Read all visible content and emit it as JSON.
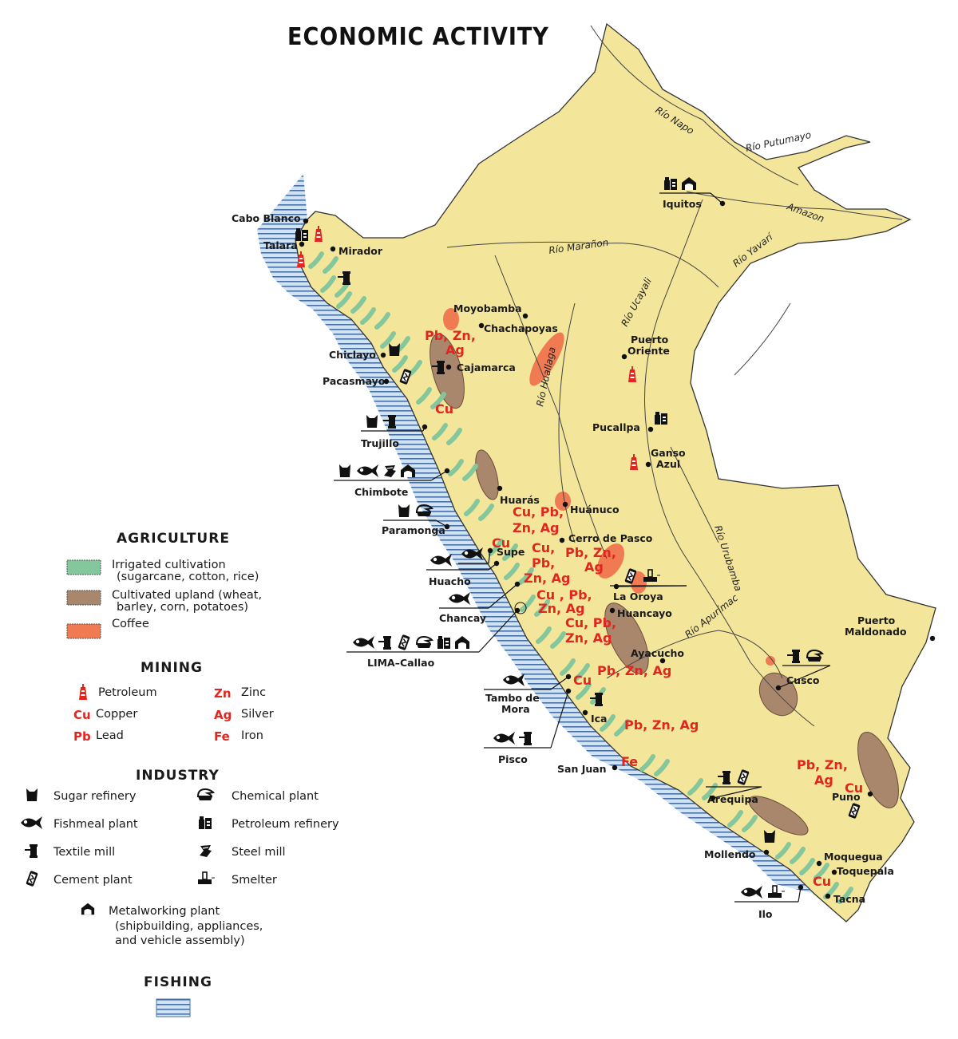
{
  "title": "ECONOMIC ACTIVITY",
  "colors": {
    "land": "#f3e69a",
    "border": "#333333",
    "irrigated": "#84c79c",
    "upland": "#a9876c",
    "coffee": "#f07a52",
    "mineral_label": "#e2261f",
    "fishing_stripe": "#4a6fa5",
    "fishing_fill": "#cfe3f3"
  },
  "rivers": [
    "Río Napo",
    "Río Putumayo",
    "Amazon",
    "Río Yavarí",
    "Río Marañon",
    "Río Ucayali",
    "Río Huallaga",
    "Río Urubamba",
    "Río Apurímac"
  ],
  "cities": [
    "Cabo Blanco",
    "Talara",
    "Mirador",
    "Moyobamba",
    "Chachapoyas",
    "Chiclayo",
    "Cajamarca",
    "Pacasmayo",
    "Trujillo",
    "Chimbote",
    "Huarás",
    "Huánuco",
    "Paramonga",
    "Cerro de Pasco",
    "Supe",
    "Huacho",
    "La Oroya",
    "Chancay",
    "Huancayo",
    "LIMA–Callao",
    "Ayacucho",
    "Tambo de",
    "Mora",
    "Ica",
    "Pisco",
    "San Juan",
    "Iquitos",
    "Puerto",
    "Oriente",
    "Pucallpa",
    "Ganso",
    "Azul",
    "Puerto",
    "Maldonado",
    "Cusco",
    "Arequipa",
    "Puno",
    "Mollendo",
    "Moquegua",
    "Toquepala",
    "Tacna",
    "Ilo"
  ],
  "mineral_labels": [
    "Pb, Zn,",
    "Ag",
    "Cu",
    "Cu, Pb,",
    "Zn, Ag",
    "Cu",
    "Cu,",
    "Pb,",
    "Zn, Ag",
    "Pb, Zn,",
    "Ag",
    "Cu , Pb,",
    "Zn, Ag",
    "Cu, Pb,",
    "Zn, Ag",
    "Pb, Zn, Ag",
    "Cu",
    "Pb, Zn, Ag",
    "Fe",
    "Pb, Zn,",
    "Ag",
    "Cu",
    "Cu"
  ],
  "industry_clusters": [
    {
      "place": "Iquitos",
      "icons": [
        "petroleum-refinery",
        "metalworking-plant"
      ]
    },
    {
      "place": "Talara",
      "icons": [
        "petroleum-refinery"
      ]
    },
    {
      "place": "Mirador",
      "icons": [
        "textile-mill"
      ]
    },
    {
      "place": "Chiclayo",
      "icons": [
        "sugar-refinery"
      ]
    },
    {
      "place": "Cajamarca",
      "icons": [
        "textile-mill"
      ]
    },
    {
      "place": "Pacasmayo",
      "icons": [
        "cement-plant"
      ]
    },
    {
      "place": "Trujillo",
      "icons": [
        "sugar-refinery",
        "textile-mill"
      ]
    },
    {
      "place": "Chimbote",
      "icons": [
        "sugar-refinery",
        "fishmeal-plant",
        "steel-mill",
        "metalworking-plant"
      ]
    },
    {
      "place": "Pucallpa",
      "icons": [
        "petroleum-refinery"
      ]
    },
    {
      "place": "Paramonga",
      "icons": [
        "sugar-refinery",
        "chemical-plant"
      ]
    },
    {
      "place": "Supe",
      "icons": [
        "fishmeal-plant"
      ]
    },
    {
      "place": "Huacho",
      "icons": [
        "fishmeal-plant"
      ]
    },
    {
      "place": "La Oroya",
      "icons": [
        "cement-plant",
        "smelter"
      ]
    },
    {
      "place": "Chancay",
      "icons": [
        "fishmeal-plant"
      ]
    },
    {
      "place": "LIMA–Callao",
      "icons": [
        "fishmeal-plant",
        "textile-mill",
        "cement-plant",
        "chemical-plant",
        "petroleum-refinery",
        "metalworking-plant"
      ]
    },
    {
      "place": "Tambo de Mora",
      "icons": [
        "fishmeal-plant"
      ]
    },
    {
      "place": "Ica",
      "icons": [
        "textile-mill"
      ]
    },
    {
      "place": "Pisco",
      "icons": [
        "fishmeal-plant",
        "textile-mill"
      ]
    },
    {
      "place": "Cusco",
      "icons": [
        "textile-mill",
        "chemical-plant"
      ]
    },
    {
      "place": "Arequipa",
      "icons": [
        "textile-mill",
        "cement-plant"
      ]
    },
    {
      "place": "Puno",
      "icons": [
        "cement-plant"
      ]
    },
    {
      "place": "Mollendo",
      "icons": [
        "sugar-refinery"
      ]
    },
    {
      "place": "Ilo",
      "icons": [
        "fishmeal-plant",
        "smelter"
      ]
    }
  ],
  "petroleum_sites": [
    "Talara",
    "Cabo Blanco",
    "Puerto Oriente",
    "Ganso Azul"
  ],
  "legend": {
    "agriculture": {
      "heading": "AGRICULTURE",
      "items": [
        {
          "line1": "Irrigated cultivation",
          "line2": "(sugarcane, cotton, rice)",
          "color": "#84c79c"
        },
        {
          "line1": "Cultivated upland (wheat,",
          "line2": "barley, corn, potatoes)",
          "color": "#a9876c"
        },
        {
          "line1": "Coffee",
          "line2": "",
          "color": "#f07a52"
        }
      ]
    },
    "mining": {
      "heading": "MINING",
      "items": [
        {
          "symbol": "",
          "icon": "petroleum-icon",
          "label": "Petroleum"
        },
        {
          "symbol": "Cu",
          "label": "Copper"
        },
        {
          "symbol": "Pb",
          "label": "Lead"
        },
        {
          "symbol": "Zn",
          "label": "Zinc"
        },
        {
          "symbol": "Ag",
          "label": "Silver"
        },
        {
          "symbol": "Fe",
          "label": "Iron"
        }
      ]
    },
    "industry": {
      "heading": "INDUSTRY",
      "items": [
        {
          "icon": "sugar-refinery",
          "label": "Sugar refinery"
        },
        {
          "icon": "fishmeal-plant",
          "label": "Fishmeal plant"
        },
        {
          "icon": "textile-mill",
          "label": "Textile mill"
        },
        {
          "icon": "cement-plant",
          "label": "Cement plant"
        },
        {
          "icon": "chemical-plant",
          "label": "Chemical plant"
        },
        {
          "icon": "petroleum-refinery",
          "label": "Petroleum refinery"
        },
        {
          "icon": "steel-mill",
          "label": "Steel mill"
        },
        {
          "icon": "smelter",
          "label": "Smelter"
        }
      ],
      "metalworking": {
        "icon": "metalworking-plant",
        "line1": "Metalworking plant",
        "line2": "(shipbuilding, appliances,",
        "line3": "and vehicle assembly)"
      }
    },
    "fishing": {
      "heading": "FISHING"
    }
  }
}
